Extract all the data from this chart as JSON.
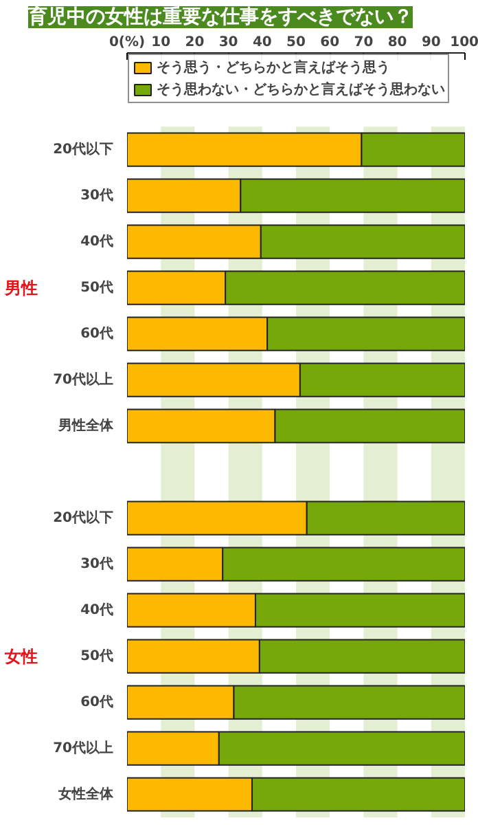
{
  "chart_data": {
    "type": "bar",
    "orientation": "horizontal",
    "stacked": true,
    "title": "育児中の女性は重要な仕事をすべきでない？",
    "categories": [
      "20代以下",
      "30代",
      "40代",
      "50代",
      "60代",
      "70代以上",
      "男性全体",
      null,
      "20代以下",
      "30代",
      "40代",
      "50代",
      "60代",
      "70代以上",
      "女性全体"
    ],
    "series": [
      {
        "name": "そう思う・どちらかと言えばそう思う",
        "color": "#fdb900",
        "values": [
          69.4,
          33.6,
          39.6,
          29.1,
          41.5,
          51.2,
          43.8,
          null,
          53.2,
          28.3,
          38.0,
          39.2,
          31.6,
          27.2,
          37.0
        ]
      },
      {
        "name": "そう思わない・どちらかと言えばそう思わない",
        "color": "#76a80a",
        "values": [
          30.6,
          66.4,
          60.4,
          70.9,
          58.5,
          48.8,
          56.2,
          null,
          46.8,
          71.7,
          62.0,
          60.8,
          68.4,
          72.8,
          63.0
        ]
      }
    ],
    "xlim": [
      0,
      100
    ],
    "xticks": [
      {
        "value": 0,
        "label": "0(%)"
      },
      10,
      20,
      30,
      40,
      50,
      60,
      70,
      80,
      90,
      100
    ],
    "bands": [
      {
        "axis": "x",
        "from": 10,
        "to": 20,
        "color": "#e3eed3"
      },
      {
        "axis": "x",
        "from": 30,
        "to": 40,
        "color": "#e3eed3"
      },
      {
        "axis": "x",
        "from": 50,
        "to": 60,
        "color": "#e3eed3"
      },
      {
        "axis": "x",
        "from": 70,
        "to": 80,
        "color": "#e3eed3"
      },
      {
        "axis": "x",
        "from": 90,
        "to": 100,
        "color": "#e3eed3"
      }
    ],
    "annotations": [
      "男性",
      "女性"
    ],
    "legend": "top"
  }
}
